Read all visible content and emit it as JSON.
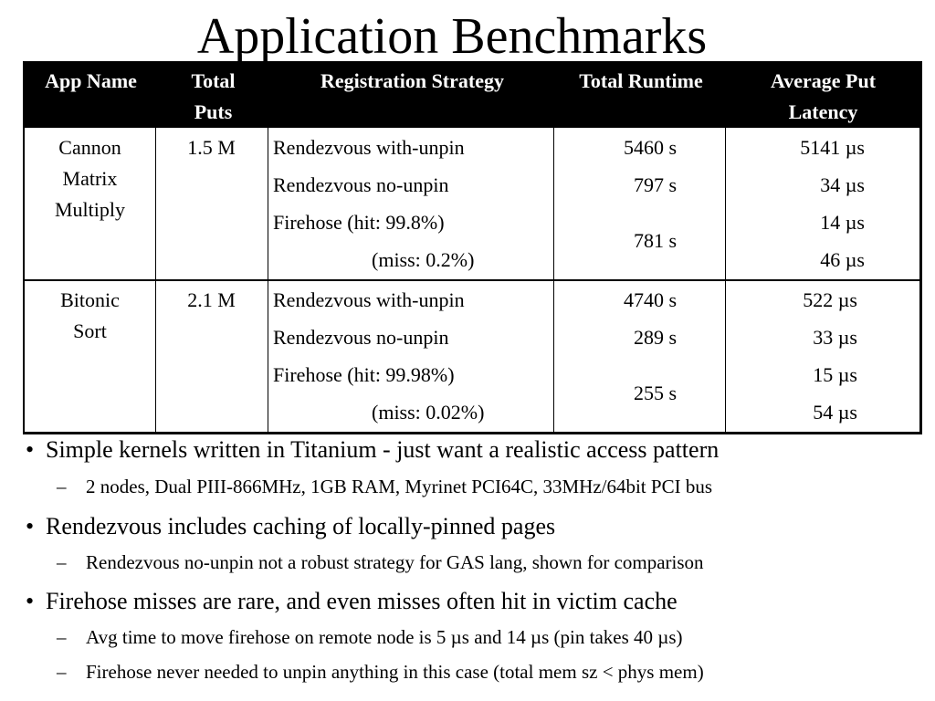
{
  "title": "Application Benchmarks",
  "table": {
    "headers": [
      "App Name",
      "Total Puts",
      "Registration Strategy",
      "Total Runtime",
      "Average Put Latency"
    ],
    "header_lines": [
      [
        "App Name"
      ],
      [
        "Total",
        "Puts"
      ],
      [
        "Registration Strategy"
      ],
      [
        "Total Runtime"
      ],
      [
        "Average Put",
        "Latency"
      ]
    ],
    "rows": [
      {
        "app": [
          "Cannon",
          "Matrix",
          "Multiply"
        ],
        "puts": "1.5 M",
        "strategies": [
          "Rendezvous with-unpin",
          "Rendezvous no-unpin",
          "Firehose (hit:  99.8%)",
          "(miss: 0.2%)"
        ],
        "runtimes": [
          "5460 s",
          "797 s",
          "781 s"
        ],
        "latencies": [
          "5141 µs",
          "34 µs",
          "14 µs",
          "46 µs"
        ]
      },
      {
        "app": [
          "Bitonic",
          "Sort"
        ],
        "puts": "2.1 M",
        "strategies": [
          "Rendezvous with-unpin",
          "Rendezvous no-unpin",
          "Firehose (hit:  99.98%)",
          "(miss: 0.02%)"
        ],
        "runtimes": [
          "4740 s",
          "289 s",
          "255 s"
        ],
        "latencies": [
          "522 µs",
          "33 µs",
          "15 µs",
          "54 µs"
        ]
      }
    ]
  },
  "bullets": [
    {
      "text": "Simple kernels written in Titanium - just want a realistic access pattern",
      "sub": [
        "2 nodes, Dual PIII-866MHz, 1GB RAM, Myrinet PCI64C, 33MHz/64bit PCI bus"
      ]
    },
    {
      "text": "Rendezvous includes caching of locally-pinned pages",
      "sub": [
        "Rendezvous no-unpin not a robust strategy for GAS lang, shown for comparison"
      ]
    },
    {
      "text": "Firehose misses are rare, and even misses often hit in victim cache",
      "sub": [
        "Avg time to move firehose on remote node is 5 µs and 14 µs (pin takes 40 µs)",
        "Firehose never needed to unpin anything in this case (total mem sz < phys mem)"
      ]
    }
  ]
}
